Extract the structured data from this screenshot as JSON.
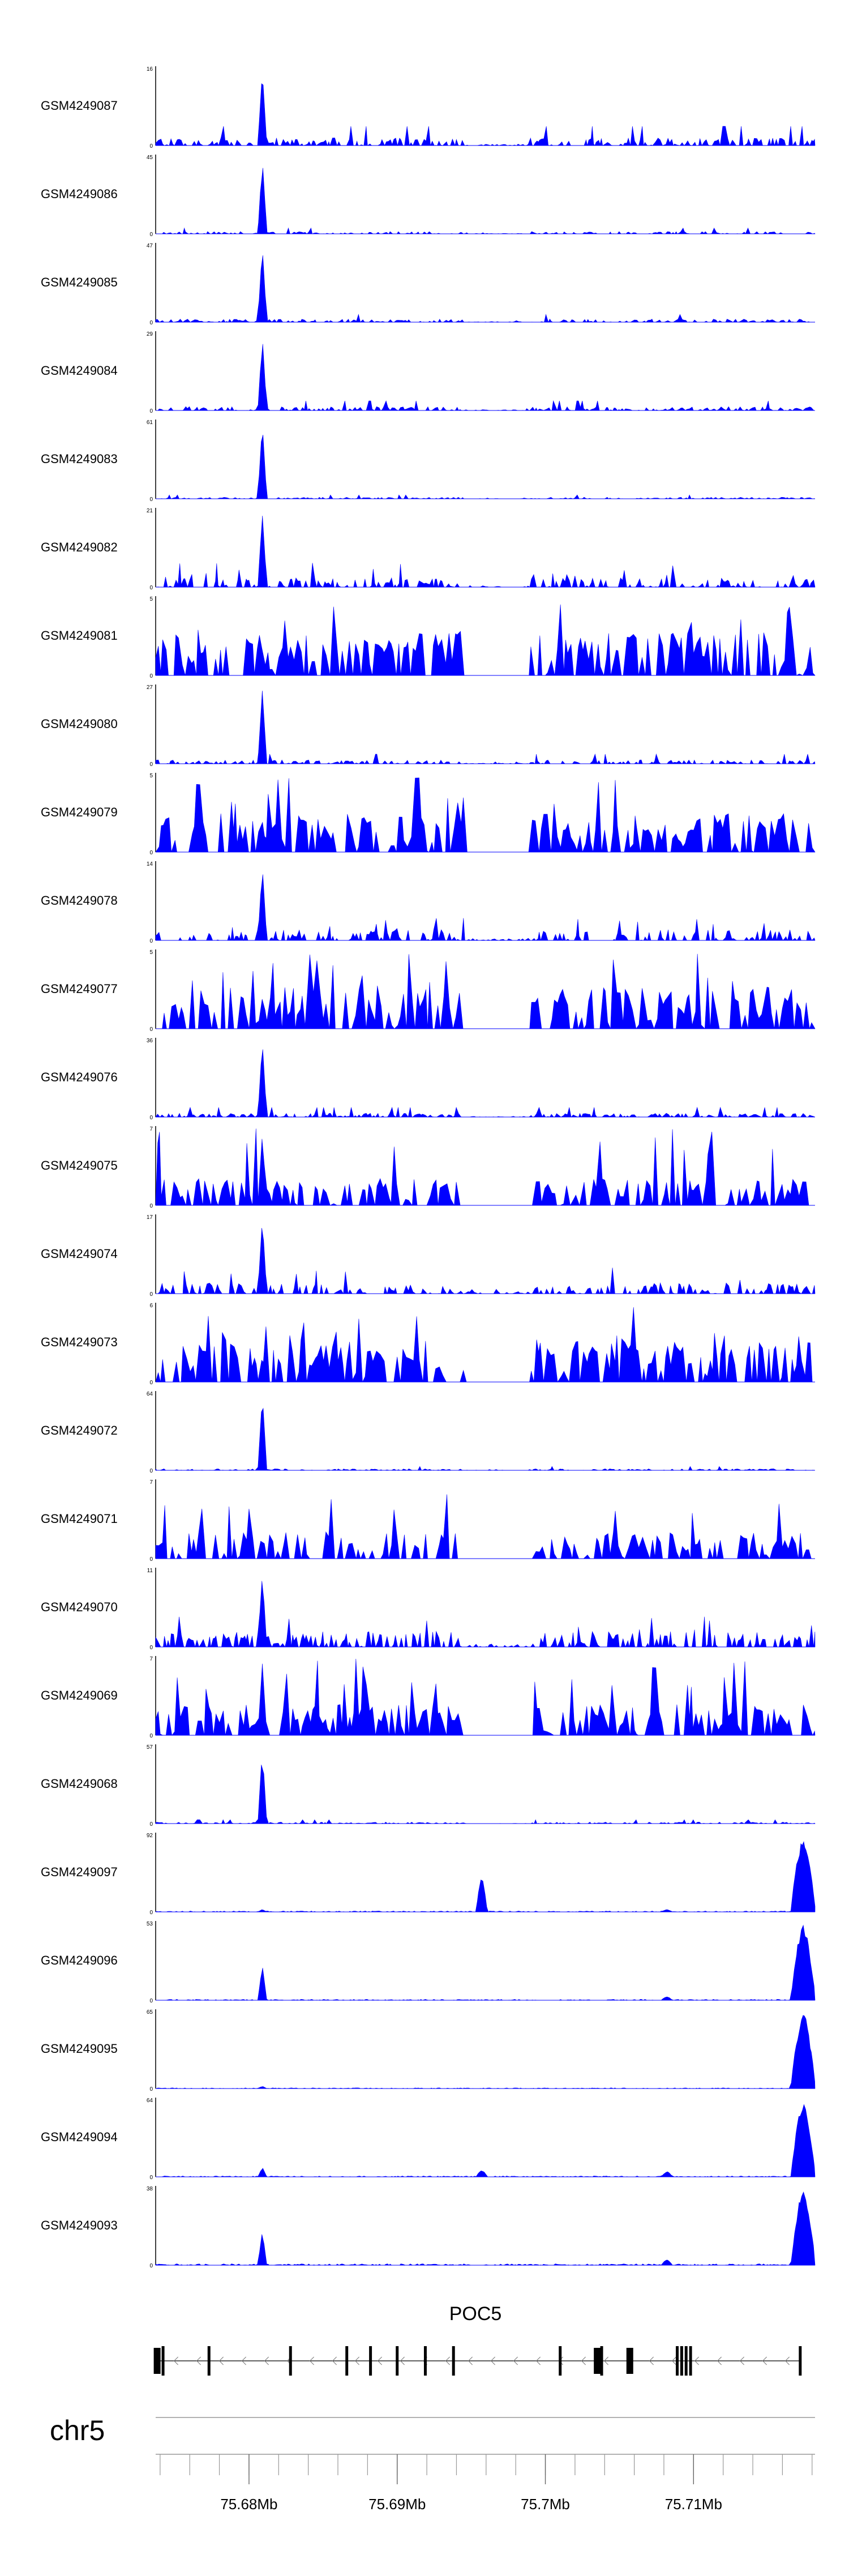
{
  "chart_data": {
    "type": "area",
    "chromosome": "chr5",
    "gene": {
      "name": "POC5"
    },
    "xlim": [
      75.6737,
      75.7182
    ],
    "axis_ticks": [
      {
        "value": 75.68,
        "label": "75.68Mb"
      },
      {
        "value": 75.69,
        "label": "75.69Mb"
      },
      {
        "value": 75.7,
        "label": "75.7Mb"
      },
      {
        "value": 75.71,
        "label": "75.71Mb"
      }
    ],
    "series": [
      {
        "name": "GSM4249087",
        "ymax": 16,
        "ymin": 0,
        "style": "dense",
        "peak": 15.5,
        "noise": 0.1
      },
      {
        "name": "GSM4249086",
        "ymax": 45,
        "ymin": 0,
        "style": "dense",
        "peak": 44,
        "noise": 0.03
      },
      {
        "name": "GSM4249085",
        "ymax": 47,
        "ymin": 0,
        "style": "dense",
        "peak": 46,
        "noise": 0.04
      },
      {
        "name": "GSM4249084",
        "ymax": 29,
        "ymin": 0,
        "style": "dense",
        "peak": 28,
        "noise": 0.05
      },
      {
        "name": "GSM4249083",
        "ymax": 61,
        "ymin": 0,
        "style": "dense",
        "peak": 60,
        "noise": 0.02
      },
      {
        "name": "GSM4249082",
        "ymax": 21,
        "ymin": 0,
        "style": "sparse",
        "peak": 20,
        "noise": 0.12
      },
      {
        "name": "GSM4249081",
        "ymax": 5,
        "ymin": 0,
        "style": "spiky",
        "peak": 2,
        "noise": 0.55
      },
      {
        "name": "GSM4249080",
        "ymax": 27,
        "ymin": 0,
        "style": "dense",
        "peak": 26,
        "noise": 0.05
      },
      {
        "name": "GSM4249079",
        "ymax": 5,
        "ymin": 0,
        "style": "spiky",
        "peak": 2,
        "noise": 0.5
      },
      {
        "name": "GSM4249078",
        "ymax": 14,
        "ymin": 0,
        "style": "sparse",
        "peak": 13.5,
        "noise": 0.14
      },
      {
        "name": "GSM4249077",
        "ymax": 5,
        "ymin": 0,
        "style": "spiky",
        "peak": 2,
        "noise": 0.55
      },
      {
        "name": "GSM4249076",
        "ymax": 36,
        "ymin": 0,
        "style": "dense",
        "peak": 35,
        "noise": 0.05
      },
      {
        "name": "GSM4249075",
        "ymax": 7,
        "ymin": 0,
        "style": "spiky",
        "peak": 6.5,
        "noise": 0.35
      },
      {
        "name": "GSM4249074",
        "ymax": 17,
        "ymin": 0,
        "style": "sparse",
        "peak": 16.5,
        "noise": 0.14
      },
      {
        "name": "GSM4249073",
        "ymax": 6,
        "ymin": 0,
        "style": "spiky",
        "peak": 2,
        "noise": 0.55
      },
      {
        "name": "GSM4249072",
        "ymax": 64,
        "ymin": 0,
        "style": "dense",
        "peak": 63,
        "noise": 0.02
      },
      {
        "name": "GSM4249071",
        "ymax": 7,
        "ymin": 0,
        "style": "spiky",
        "peak": 2.5,
        "noise": 0.35
      },
      {
        "name": "GSM4249070",
        "ymax": 11,
        "ymin": 0,
        "style": "sparse",
        "peak": 10.5,
        "noise": 0.2
      },
      {
        "name": "GSM4249069",
        "ymax": 7,
        "ymin": 0,
        "style": "spiky",
        "peak": 6.5,
        "noise": 0.4
      },
      {
        "name": "GSM4249068",
        "ymax": 57,
        "ymin": 0,
        "style": "dense",
        "peak": 56,
        "noise": 0.02
      },
      {
        "name": "GSM4249097",
        "ymax": 92,
        "ymin": 0,
        "style": "smooth",
        "peak": 3,
        "noise": 0.02,
        "extra": [
          {
            "x": 75.6957,
            "h": 0.45
          },
          {
            "x": 75.7174,
            "h": 1.0
          },
          {
            "x": 75.7082,
            "h": 0.03
          }
        ]
      },
      {
        "name": "GSM4249096",
        "ymax": 53,
        "ymin": 0,
        "style": "smooth",
        "peak": 24,
        "noise": 0.02,
        "extra": [
          {
            "x": 75.7174,
            "h": 1.0
          },
          {
            "x": 75.7082,
            "h": 0.05
          }
        ]
      },
      {
        "name": "GSM4249095",
        "ymax": 65,
        "ymin": 0,
        "style": "smooth",
        "peak": 2,
        "noise": 0.015,
        "extra": [
          {
            "x": 75.7174,
            "h": 1.0
          }
        ]
      },
      {
        "name": "GSM4249094",
        "ymax": 64,
        "ymin": 0,
        "style": "smooth",
        "peak": 8,
        "noise": 0.02,
        "extra": [
          {
            "x": 75.6957,
            "h": 0.09
          },
          {
            "x": 75.7174,
            "h": 1.0
          },
          {
            "x": 75.7082,
            "h": 0.07
          }
        ]
      },
      {
        "name": "GSM4249093",
        "ymax": 38,
        "ymin": 0,
        "style": "smooth",
        "peak": 17,
        "noise": 0.03,
        "extra": [
          {
            "x": 75.7174,
            "h": 1.0
          },
          {
            "x": 75.7082,
            "h": 0.07
          }
        ]
      }
    ],
    "common_peak_x": 75.6809,
    "exons": [
      75.6738,
      75.6742,
      75.6773,
      75.6828,
      75.6866,
      75.6882,
      75.69,
      75.6919,
      75.6938,
      75.701,
      75.7035,
      75.7038,
      75.7057,
      75.7089,
      75.7092,
      75.7095,
      75.7098,
      75.7172
    ],
    "big_exons": [
      75.6738,
      75.7035,
      75.7057
    ]
  }
}
